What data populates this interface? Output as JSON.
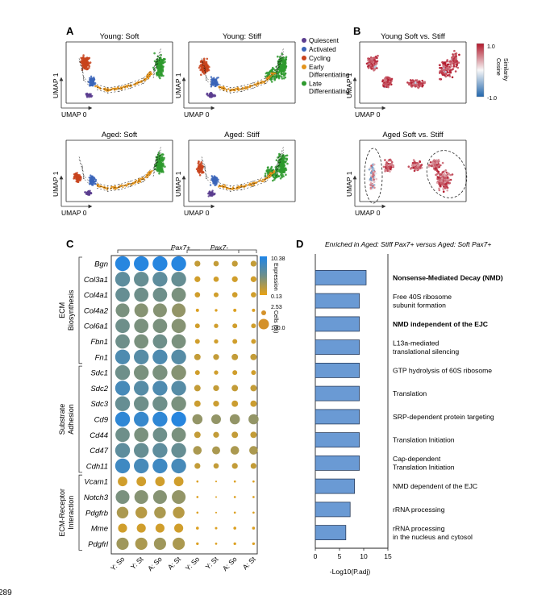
{
  "page_number": "289",
  "colors": {
    "quiescent": "#5b3d8f",
    "activated": "#3a64b8",
    "cycling": "#c8431c",
    "early": "#e3941c",
    "late": "#2e9a2e",
    "bar": "#6a9ad4",
    "high": "#b2182b",
    "low": "#2166ac"
  },
  "panel_a": {
    "label": "A",
    "titles": [
      "Young: Soft",
      "Young: Stiff",
      "Aged: Soft",
      "Aged: Stiff"
    ],
    "axis_x": "UMAP 0",
    "axis_y": "UMAP 1",
    "legend": [
      {
        "text": [
          "Quiescent"
        ],
        "color": "#5b3d8f"
      },
      {
        "text": [
          "Activated"
        ],
        "color": "#3a64b8"
      },
      {
        "text": [
          "Cycling"
        ],
        "color": "#c8431c"
      },
      {
        "text": [
          "Early",
          "Differentiating"
        ],
        "color": "#e3941c"
      },
      {
        "text": [
          "Late",
          "Differentiating"
        ],
        "color": "#2e9a2e"
      }
    ]
  },
  "panel_b": {
    "label": "B",
    "titles": [
      "Young Soft vs. Stiff",
      "Aged Soft vs. Stiff"
    ],
    "axis_x": "UMAP 0",
    "axis_y": "UMAP 1",
    "colorbar_max": "1.0",
    "colorbar_min": "-1.0",
    "colorbar_title": [
      "Cosine",
      "Similarity"
    ]
  },
  "panel_c": {
    "label": "C",
    "group_pos": "Pax7+",
    "group_neg": "Pax7-",
    "expr_max": "10.38",
    "expr_min": "0.13",
    "expr_title": "Expression",
    "cells_min": "2.53",
    "cells_max": "100.0",
    "cells_title": "Cells (%)",
    "columns": [
      "Y: So",
      "Y: St",
      "A: So",
      "A: St",
      "Y: So",
      "Y: St",
      "A: So",
      "A: St"
    ],
    "categories": [
      {
        "name": [
          "ECM",
          "Biosynthesis"
        ],
        "genes": 7
      },
      {
        "name": [
          "Substrate",
          "Adhesion"
        ],
        "genes": 7
      },
      {
        "name": [
          "ECM-Receptor",
          "Interaction"
        ],
        "genes": 5
      }
    ],
    "genes": [
      "Bgn",
      "Col3a1",
      "Col4a1",
      "Col4a2",
      "Col6a1",
      "Fbn1",
      "Fn1",
      "Sdc1",
      "Sdc2",
      "Sdc3",
      "Cd9",
      "Cd44",
      "Cd47",
      "Cdh11",
      "Vcam1",
      "Notch3",
      "Pdgfrb",
      "Mme",
      "Pdgfrl"
    ]
  },
  "panel_d": {
    "label": "D",
    "title": "Enriched in Aged: Stiff Pax7+ versus Aged: Soft Pax7+",
    "xlabel": "-Log10(P.adj)",
    "ticks": [
      "0",
      "5",
      "10",
      "15"
    ]
  },
  "chart_data": {
    "type": "bar",
    "title": "Enriched in Aged: Stiff Pax7+ versus Aged: Soft Pax7+",
    "xlabel": "-Log10(P.adj)",
    "ylabel": "",
    "xlim": [
      0,
      15
    ],
    "categories": [
      "Nonsense-Mediated Decay (NMD)",
      "Free 40S ribosome subunit formation",
      "NMD independent of the EJC",
      "L13a-mediated translational silencing",
      "GTP hydrolysis of 60S ribosome",
      "Translation",
      "SRP-dependent protein targeting",
      "Translation Initiation",
      "Cap-dependent Translation Initiation",
      "NMD dependent of the EJC",
      "rRNA processing",
      "rRNA processing in the nucleus and cytosol"
    ],
    "labels": [
      [
        "Nonsense-Mediated Decay (NMD)"
      ],
      [
        "Free 40S ribosome",
        "subunit formation"
      ],
      [
        "NMD independent of the EJC"
      ],
      [
        "L13a-mediated",
        "translational silencing"
      ],
      [
        "GTP hydrolysis of 60S ribosome"
      ],
      [
        "Translation"
      ],
      [
        "SRP-dependent protein targeting"
      ],
      [
        "Translation Initiation"
      ],
      [
        "Cap-dependent",
        "Translation Initiation"
      ],
      [
        "NMD dependent of the EJC"
      ],
      [
        "rRNA processing"
      ],
      [
        "rRNA processing",
        "in the nucleus and cytosol"
      ]
    ],
    "bold": [
      true,
      false,
      true,
      false,
      false,
      false,
      false,
      false,
      false,
      false,
      false,
      false
    ],
    "values": [
      10.5,
      9.1,
      9.1,
      9.1,
      9.1,
      9.1,
      9.1,
      9.1,
      9.1,
      8.1,
      7.2,
      6.3
    ]
  }
}
